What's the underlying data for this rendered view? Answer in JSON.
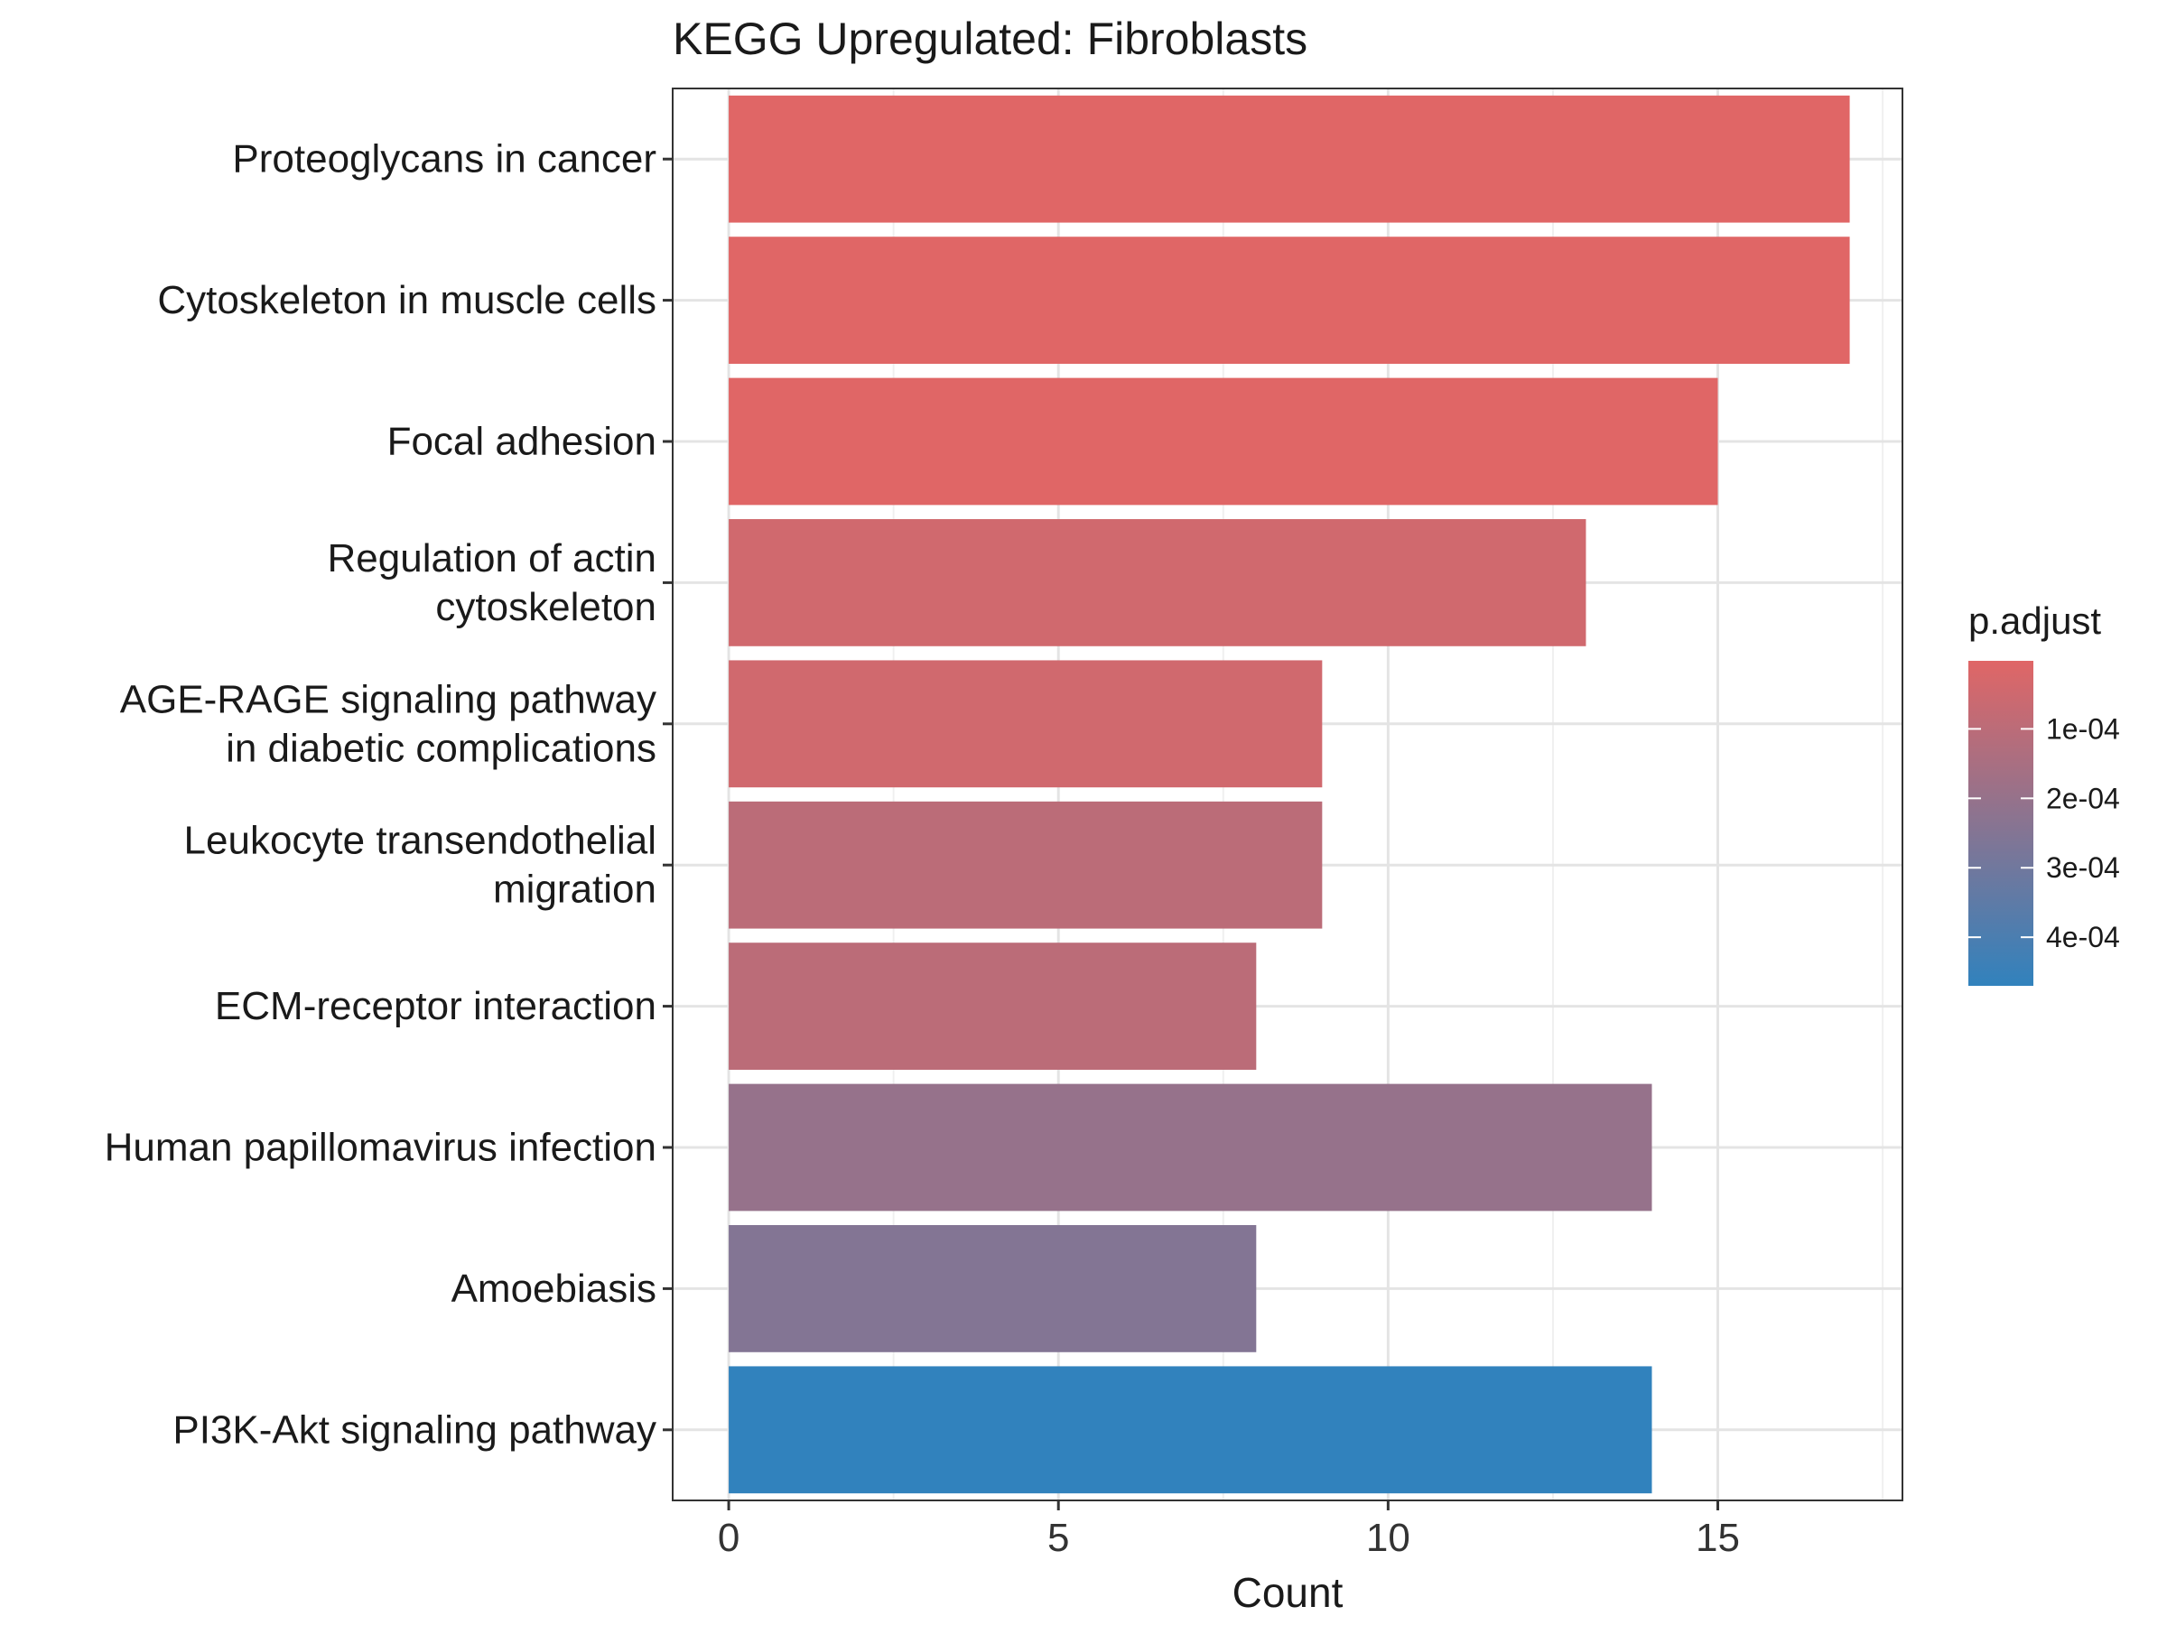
{
  "chart_data": {
    "type": "bar",
    "orientation": "horizontal",
    "title": "KEGG Upregulated: Fibroblasts",
    "xlabel": "Count",
    "ylabel": "",
    "xlim": [
      -0.85,
      17.8
    ],
    "xticks": [
      0,
      5,
      10,
      15
    ],
    "grid": true,
    "categories": [
      [
        "Proteoglycans in cancer"
      ],
      [
        "Cytoskeleton in muscle cells"
      ],
      [
        "Focal adhesion"
      ],
      [
        "Regulation of actin",
        "cytoskeleton"
      ],
      [
        "AGE-RAGE signaling pathway",
        "in diabetic complications"
      ],
      [
        "Leukocyte transendothelial",
        "migration"
      ],
      [
        "ECM-receptor interaction"
      ],
      [
        "Human papillomavirus infection"
      ],
      [
        "Amoebiasis"
      ],
      [
        "PI3K-Akt signaling pathway"
      ]
    ],
    "values": [
      17,
      17,
      15,
      13,
      9,
      9,
      8,
      14,
      8,
      14
    ],
    "p_adjust": [
      2e-06,
      2e-06,
      3e-06,
      4.5e-05,
      4.5e-05,
      0.0001,
      0.0001,
      0.0002,
      0.00025,
      0.00047
    ],
    "legend": {
      "title": "p.adjust",
      "position": "right",
      "ticks": [
        {
          "value": 0.0001,
          "label": "1e-04"
        },
        {
          "value": 0.0002,
          "label": "2e-04"
        },
        {
          "value": 0.0003,
          "label": "3e-04"
        },
        {
          "value": 0.0004,
          "label": "4e-04"
        }
      ],
      "range": [
        2e-06,
        0.00047
      ],
      "color_low": "#E06666",
      "color_high": "#3182BD"
    }
  }
}
